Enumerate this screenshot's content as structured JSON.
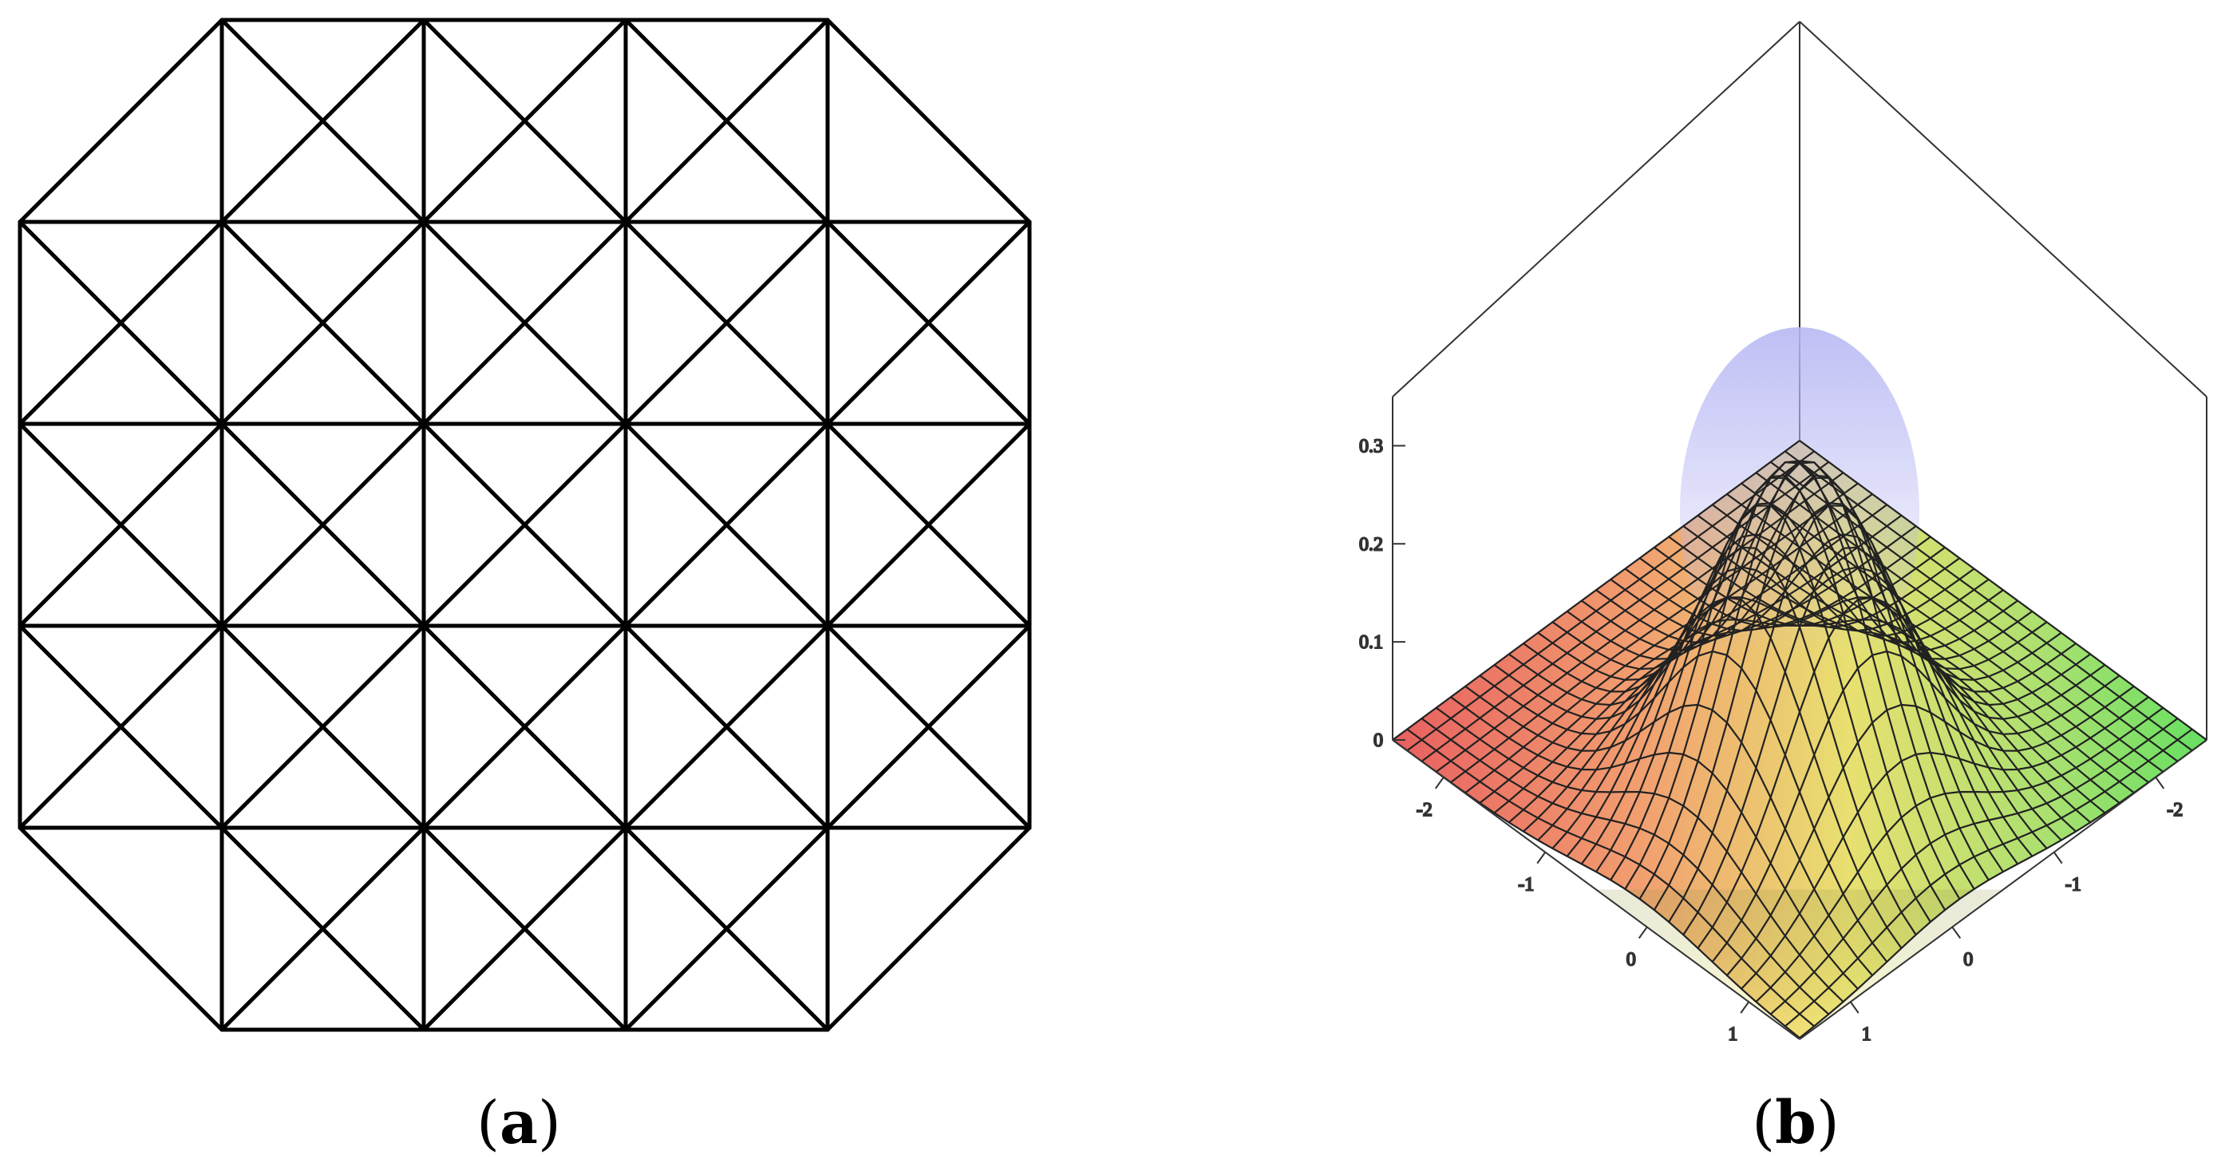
{
  "panels": [
    {
      "id": "a",
      "caption": {
        "open": "(",
        "letter": "a",
        "close": ")"
      },
      "mesh": {
        "cells_x": 5,
        "cells_y": 5,
        "corners_cut": true
      }
    },
    {
      "id": "b",
      "caption": {
        "open": "(",
        "letter": "b",
        "close": ")"
      },
      "surface": {
        "type": "surface3d",
        "z_ticks": [
          "0.3",
          "0.2",
          "0.1",
          "0"
        ],
        "z_tick_values": [
          0.3,
          0.2,
          0.1,
          0
        ],
        "x_ticks": [
          "-2",
          "-1",
          "0",
          "1"
        ],
        "y_ticks": [
          "-2",
          "-1",
          "0",
          "1"
        ],
        "x_range": [
          -2.5,
          1.5
        ],
        "y_range": [
          -2.5,
          1.5
        ],
        "z_range": [
          0,
          0.35
        ],
        "peak_z": 0.35
      }
    }
  ]
}
